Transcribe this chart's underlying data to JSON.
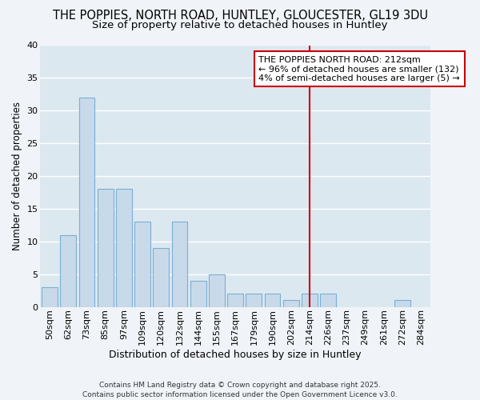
{
  "title1": "THE POPPIES, NORTH ROAD, HUNTLEY, GLOUCESTER, GL19 3DU",
  "title2": "Size of property relative to detached houses in Huntley",
  "xlabel": "Distribution of detached houses by size in Huntley",
  "ylabel": "Number of detached properties",
  "categories": [
    "50sqm",
    "62sqm",
    "73sqm",
    "85sqm",
    "97sqm",
    "109sqm",
    "120sqm",
    "132sqm",
    "144sqm",
    "155sqm",
    "167sqm",
    "179sqm",
    "190sqm",
    "202sqm",
    "214sqm",
    "226sqm",
    "237sqm",
    "249sqm",
    "261sqm",
    "272sqm",
    "284sqm"
  ],
  "values": [
    3,
    11,
    32,
    18,
    18,
    13,
    9,
    13,
    4,
    5,
    2,
    2,
    2,
    1,
    2,
    2,
    0,
    0,
    0,
    1,
    0
  ],
  "bar_color": "#c8daea",
  "bar_edge_color": "#7aafd4",
  "background_color": "#f0f4f8",
  "plot_bg_color": "#dce8f0",
  "grid_color": "#ffffff",
  "vline_x_index": 14,
  "vline_label": "THE POPPIES NORTH ROAD: 212sqm",
  "annotation_line1": "← 96% of detached houses are smaller (132)",
  "annotation_line2": "4% of semi-detached houses are larger (5) →",
  "annotation_box_color": "#ffffff",
  "annotation_border_color": "#cc0000",
  "vline_color": "#cc0000",
  "footer": "Contains HM Land Registry data © Crown copyright and database right 2025.\nContains public sector information licensed under the Open Government Licence v3.0.",
  "ylim": [
    0,
    40
  ],
  "yticks": [
    0,
    5,
    10,
    15,
    20,
    25,
    30,
    35,
    40
  ],
  "title1_fontsize": 10.5,
  "title2_fontsize": 9.5,
  "xlabel_fontsize": 9,
  "ylabel_fontsize": 8.5,
  "tick_fontsize": 8,
  "annot_fontsize": 8
}
